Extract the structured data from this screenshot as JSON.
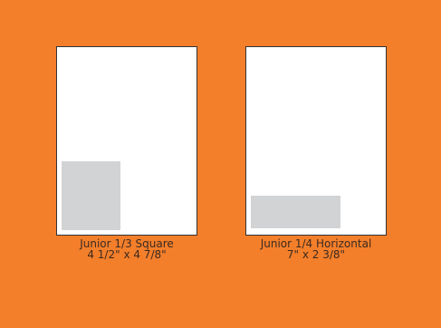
{
  "colors": {
    "background": "#f47f2a",
    "page": "#ffffff",
    "ad_block": "#d2d3d5"
  },
  "ads": [
    {
      "name": "Junior 1/3 Square",
      "size": "4 1/2\" x 4 7/8\""
    },
    {
      "name": "Junior 1/4 Horizontal",
      "size": "7\" x 2 3/8\""
    }
  ]
}
